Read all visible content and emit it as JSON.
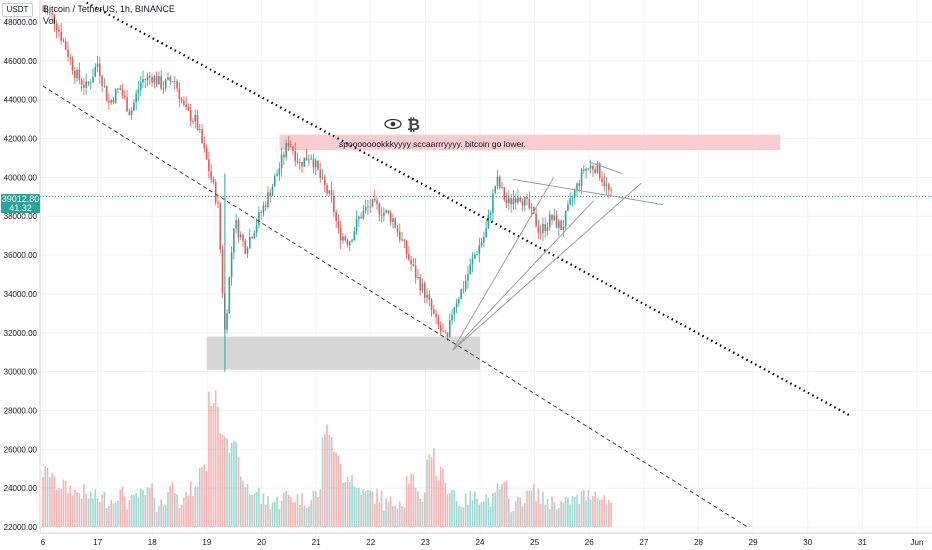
{
  "header": {
    "symbol": "Bitcoin / TetherUS, 1h, BINANCE",
    "indicator": "Vol"
  },
  "currency_label": "USDT",
  "price_tag": {
    "price": "39012.80",
    "countdown": "41:32",
    "value": 39012.8
  },
  "chart_data": {
    "type": "candlestick",
    "title": "Bitcoin / TetherUS, 1h, BINANCE",
    "y_ticks": [
      "48000.00",
      "46000.00",
      "44000.00",
      "42000.00",
      "40000.00",
      "38000.00",
      "36000.00",
      "34000.00",
      "32000.00",
      "30000.00",
      "28000.00",
      "26000.00",
      "24000.00",
      "22000.00"
    ],
    "y_range": [
      22000,
      49000
    ],
    "x_ticks": [
      "6",
      "17",
      "18",
      "19",
      "20",
      "21",
      "22",
      "23",
      "24",
      "25",
      "26",
      "27",
      "28",
      "29",
      "30",
      "31",
      "Jun"
    ],
    "x_day_range": [
      16,
      32
    ],
    "last_price": 39012.8,
    "series": [
      {
        "name": "price",
        "day": [
          16.0,
          16.2,
          16.4,
          16.6,
          16.8,
          17.0,
          17.2,
          17.4,
          17.6,
          17.8,
          18.0,
          18.2,
          18.4,
          18.6,
          18.8,
          19.0,
          19.2,
          19.33,
          19.5,
          19.7,
          19.9,
          20.1,
          20.3,
          20.5,
          20.7,
          20.9,
          21.1,
          21.3,
          21.4,
          21.6,
          21.8,
          22.0,
          22.2,
          22.4,
          22.6,
          22.8,
          23.0,
          23.2,
          23.4,
          23.5,
          23.7,
          23.9,
          24.1,
          24.3,
          24.5,
          24.7,
          24.9,
          25.1,
          25.3,
          25.5,
          25.7,
          25.9,
          26.1,
          26.2,
          26.3,
          26.4
        ],
        "close": [
          48600,
          48200,
          46800,
          45300,
          44600,
          45900,
          43800,
          44600,
          43300,
          45000,
          45200,
          44700,
          45100,
          43400,
          42900,
          40800,
          38600,
          32000,
          37800,
          36400,
          37600,
          38900,
          40300,
          41900,
          40700,
          41200,
          39800,
          38700,
          37200,
          36700,
          38000,
          38600,
          38300,
          37900,
          36500,
          35100,
          34000,
          32500,
          31500,
          33300,
          34400,
          36000,
          37100,
          39900,
          38600,
          39200,
          38400,
          37200,
          37900,
          37400,
          39000,
          40400,
          40600,
          40200,
          39600,
          39012.8
        ],
        "high": [
          49000,
          48600,
          48300,
          46800,
          45800,
          46300,
          46000,
          45200,
          44800,
          45600,
          45800,
          45500,
          45500,
          45300,
          43800,
          43100,
          41100,
          40200,
          38900,
          38800,
          39200,
          40200,
          41000,
          42200,
          42300,
          41700,
          41300,
          40100,
          38300,
          38000,
          38600,
          38900,
          39000,
          38500,
          38000,
          36700,
          35200,
          34300,
          32500,
          33800,
          35000,
          36500,
          37700,
          40100,
          40000,
          39700,
          39400,
          38700,
          38300,
          38500,
          39400,
          40600,
          40800,
          40700,
          40300,
          40100
        ],
        "low": [
          47900,
          46700,
          45200,
          44300,
          43500,
          44400,
          43100,
          43200,
          42500,
          43100,
          44400,
          44200,
          43300,
          42600,
          40900,
          38100,
          30000,
          31000,
          35000,
          35800,
          36200,
          38000,
          39500,
          39600,
          39800,
          39600,
          38500,
          36300,
          35000,
          35500,
          36200,
          37700,
          37500,
          37000,
          35200,
          33800,
          33000,
          31400,
          31000,
          31400,
          33200,
          34300,
          36100,
          37000,
          38100,
          38000,
          37200,
          36500,
          36500,
          36800,
          37300,
          38800,
          39900,
          39200,
          38600,
          38400
        ]
      },
      {
        "name": "volume",
        "values": [
          24800,
          24200,
          24000,
          23800,
          23600,
          23500,
          23400,
          23700,
          23300,
          23600,
          23800,
          23200,
          24100,
          23400,
          23900,
          25200,
          28600,
          27000,
          26000,
          24200,
          23800,
          23400,
          23300,
          23600,
          23500,
          23400,
          23700,
          26900,
          25600,
          24600,
          24000,
          23700,
          23600,
          23200,
          23400,
          24500,
          23600,
          25800,
          24700,
          23900,
          23300,
          23500,
          23600,
          23400,
          24000,
          23200,
          23500,
          23800,
          23400,
          23300,
          23200,
          23400,
          23600,
          23800,
          23400,
          23200
        ]
      }
    ],
    "annotations": [
      {
        "type": "text",
        "text": "spoooooookkkyyyy sccaarrryyyy. bitcoin go lower."
      },
      {
        "type": "icons",
        "labels": [
          "eye",
          "₿"
        ]
      }
    ],
    "grid": true
  }
}
